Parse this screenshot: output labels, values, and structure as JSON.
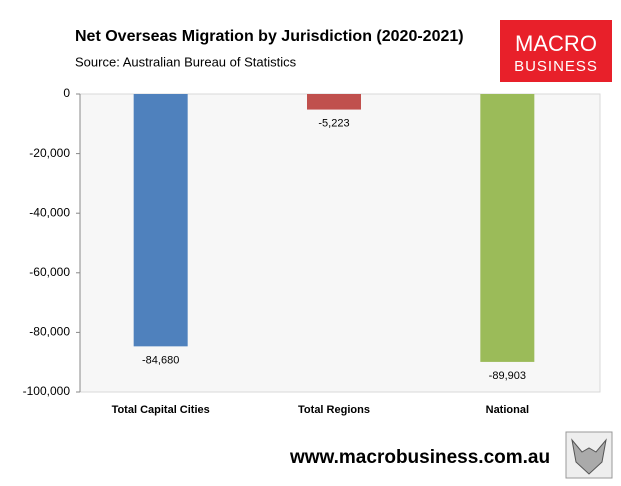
{
  "chart_data": {
    "type": "bar",
    "title": "Net Overseas Migration by Jurisdiction (2020-2021)",
    "subtitle": "Source: Australian Bureau of Statistics",
    "categories": [
      "Total Capital Cities",
      "Total Regions",
      "National"
    ],
    "values": [
      -84680,
      -5223,
      -89903
    ],
    "value_labels": [
      "-84,680",
      "-5,223",
      "-89,903"
    ],
    "colors": [
      "#4f81bd",
      "#c0504d",
      "#9bbb59"
    ],
    "ylim": [
      -100000,
      0
    ],
    "yticks": [
      {
        "value": -100000,
        "label": "-100,000"
      },
      {
        "value": -80000,
        "label": "-80,000"
      },
      {
        "value": -60000,
        "label": "-60,000"
      },
      {
        "value": -40000,
        "label": "-40,000"
      },
      {
        "value": -20000,
        "label": "-20,000"
      },
      0
    ]
  },
  "logo": {
    "line1": "MACRO",
    "line2": "BUSINESS"
  },
  "footer": "www.macrobusiness.com.au"
}
